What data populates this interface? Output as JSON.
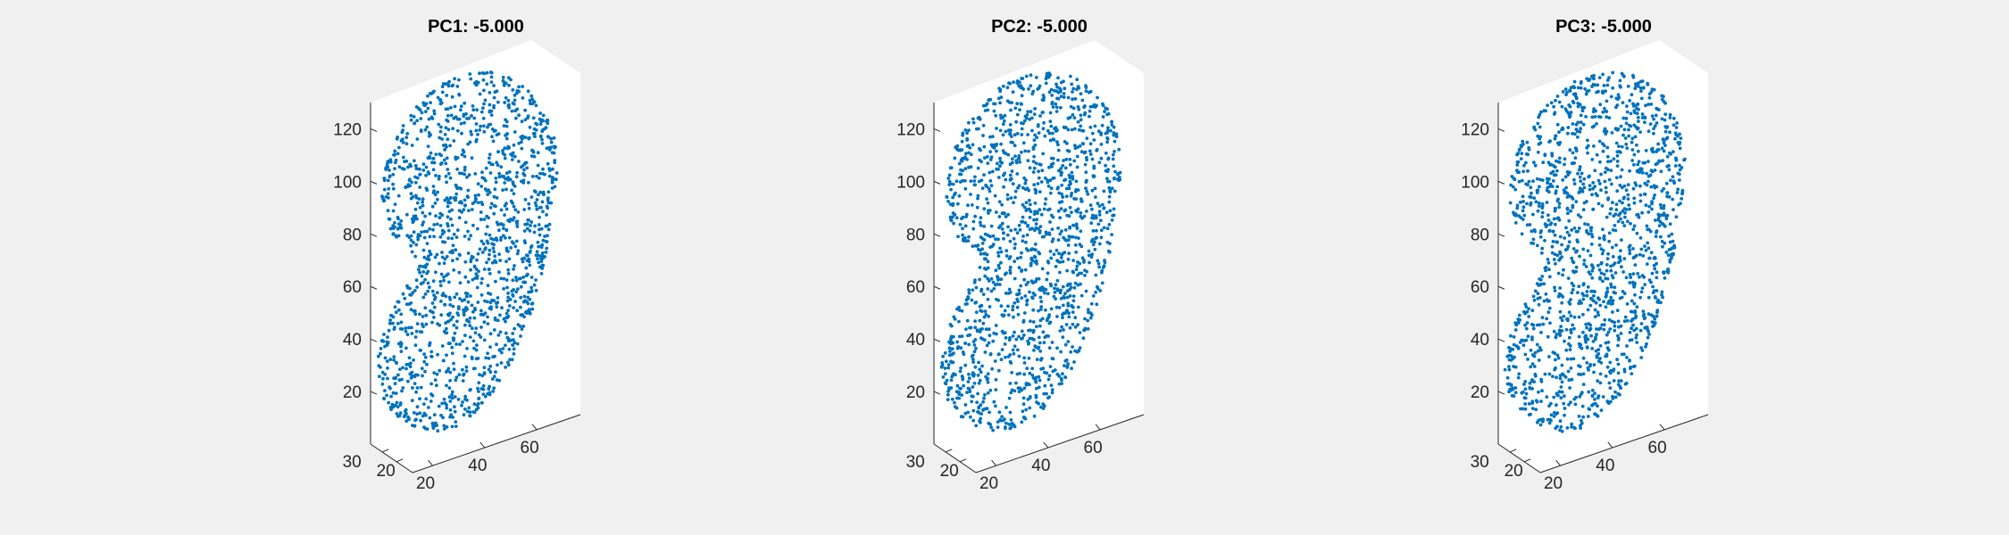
{
  "figure": {
    "background": "#f0f0f0",
    "box_color": "#ffffff",
    "axis_color": "#262626",
    "marker_color": "#0072bd"
  },
  "chart_data": [
    {
      "type": "scatter",
      "title": "PC1: -5.000",
      "zticks": [
        "20",
        "40",
        "60",
        "80",
        "100",
        "120"
      ],
      "xticks": [
        "20",
        "40",
        "60"
      ],
      "yticks": [
        "20",
        "30"
      ],
      "xlabel": "",
      "ylabel": "",
      "zlabel": "",
      "zlim": [
        0,
        130
      ],
      "grid": false,
      "seed": 11
    },
    {
      "type": "scatter",
      "title": "PC2: -5.000",
      "zticks": [
        "20",
        "40",
        "60",
        "80",
        "100",
        "120"
      ],
      "xticks": [
        "20",
        "40",
        "60"
      ],
      "yticks": [
        "20",
        "30"
      ],
      "xlabel": "",
      "ylabel": "",
      "zlabel": "",
      "zlim": [
        0,
        130
      ],
      "grid": false,
      "seed": 23
    },
    {
      "type": "scatter",
      "title": "PC3: -5.000",
      "zticks": [
        "20",
        "40",
        "60",
        "80",
        "100",
        "120"
      ],
      "xticks": [
        "20",
        "40",
        "60"
      ],
      "yticks": [
        "20",
        "30"
      ],
      "xlabel": "",
      "ylabel": "",
      "zlabel": "",
      "zlim": [
        0,
        130
      ],
      "grid": false,
      "seed": 37
    }
  ]
}
